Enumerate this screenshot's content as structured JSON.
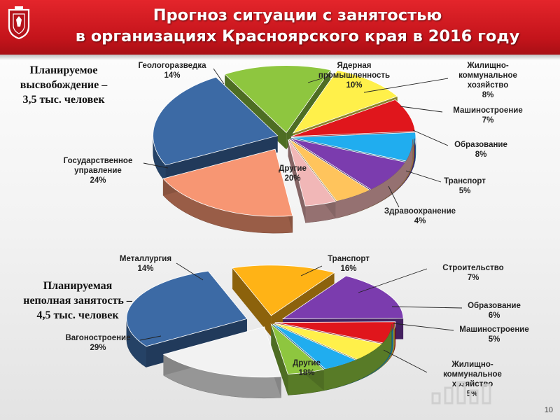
{
  "header": {
    "title_line1": "Прогноз ситуации с занятостью",
    "title_line2": "в организациях Красноярского края в 2016 году"
  },
  "notes": {
    "release_line1": "Планируемое",
    "release_line2": "высвобождение –",
    "release_line3": "3,5 тыс. человек",
    "parttime_line1": "Планируемая",
    "parttime_line2": "неполная занятость –",
    "parttime_line3": "4,5 тыс. человек"
  },
  "page_number": "10",
  "chart_data": [
    {
      "type": "pie",
      "title": "",
      "unit": "%",
      "slices": [
        {
          "name": "Другие",
          "value": 20,
          "label": "20%",
          "color": "#f79673"
        },
        {
          "name": "Государственное управление",
          "value": 24,
          "label": "24%",
          "color": "#3c6aa5"
        },
        {
          "name": "Геологоразведка",
          "value": 14,
          "label": "14%",
          "color": "#8ec63f"
        },
        {
          "name": "Ядерная промышленность",
          "value": 10,
          "label": "10%",
          "color": "#fff04a"
        },
        {
          "name": "Жилищно-коммунальное хозяйство",
          "value": 8,
          "label": "8%",
          "color": "#e0161c"
        },
        {
          "name": "Машиностроение",
          "value": 7,
          "label": "7%",
          "color": "#20adef"
        },
        {
          "name": "Образование",
          "value": 8,
          "label": "8%",
          "color": "#7b3cae"
        },
        {
          "name": "Транспорт",
          "value": 5,
          "label": "5%",
          "color": "#ffc45c"
        },
        {
          "name": "Здравоохранение",
          "value": 4,
          "label": "4%",
          "color": "#f1b7b7"
        }
      ]
    },
    {
      "type": "pie",
      "title": "",
      "unit": "%",
      "slices": [
        {
          "name": "Другие",
          "value": 18,
          "label": "18%",
          "color": "#f2f2f2"
        },
        {
          "name": "Вагоностроение",
          "value": 29,
          "label": "29%",
          "color": "#3c6aa5"
        },
        {
          "name": "Металлургия",
          "value": 14,
          "label": "14%",
          "color": "#ffb316"
        },
        {
          "name": "Транспорт",
          "value": 16,
          "label": "16%",
          "color": "#7b3cae"
        },
        {
          "name": "Строительство",
          "value": 7,
          "label": "7%",
          "color": "#e0161c"
        },
        {
          "name": "Образование",
          "value": 6,
          "label": "6%",
          "color": "#fff04a"
        },
        {
          "name": "Машиностроение",
          "value": 5,
          "label": "5%",
          "color": "#20adef"
        },
        {
          "name": "Жилищно-коммунальное хозяйство",
          "value": 5,
          "label": "5%",
          "color": "#8ec63f"
        }
      ]
    }
  ]
}
